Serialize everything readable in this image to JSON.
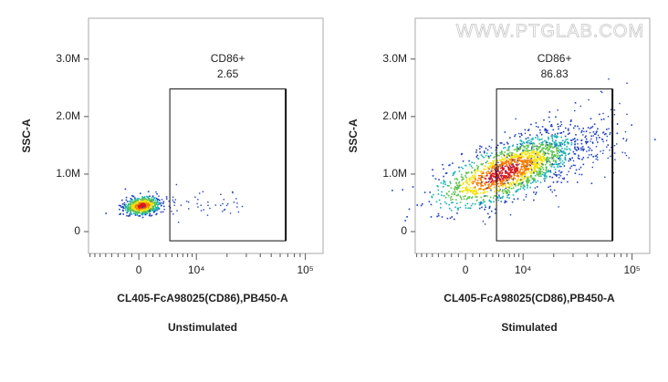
{
  "chart_data": [
    {
      "type": "scatter",
      "x_label": "CL405-FcA98025(CD86),PB450-A",
      "y_label": "SSC-A",
      "caption": "Unstimulated",
      "xscale": "biexponential",
      "xlim": [
        -8330,
        143000
      ],
      "xticks": [
        0,
        {
          "value": 10000,
          "label": "10⁴"
        },
        {
          "value": 100000,
          "label": "10⁵"
        }
      ],
      "ylim": [
        -380000,
        3710000
      ],
      "yticks": [
        0,
        {
          "value": 1000000,
          "label": "1.0M"
        },
        {
          "value": 2000000,
          "label": "2.0M"
        },
        {
          "value": 3000000,
          "label": "3.0M"
        }
      ],
      "gates": [
        {
          "name": "CD86+",
          "value": 2.65,
          "xlim": [
            4630,
            67200
          ],
          "ylim": [
            -160000,
            2480000
          ]
        }
      ]
    },
    {
      "type": "scatter",
      "x_label": "CL405-FcA98025(CD86),PB450-A",
      "y_label": "SSC-A",
      "caption": "Stimulated",
      "watermark": "WWW.PTGLAB.COM",
      "xscale": "biexponential",
      "xlim": [
        -8330,
        143000
      ],
      "xticks": [
        0,
        {
          "value": 10000,
          "label": "10⁴"
        },
        {
          "value": 100000,
          "label": "10⁵"
        }
      ],
      "ylim": [
        -380000,
        3710000
      ],
      "yticks": [
        0,
        {
          "value": 1000000,
          "label": "1.0M"
        },
        {
          "value": 2000000,
          "label": "2.0M"
        },
        {
          "value": 3000000,
          "label": "3.0M"
        }
      ],
      "gates": [
        {
          "name": "CD86+",
          "value": 86.83,
          "xlim": [
            4630,
            67200
          ],
          "ylim": [
            -160000,
            2480000
          ]
        }
      ]
    }
  ]
}
